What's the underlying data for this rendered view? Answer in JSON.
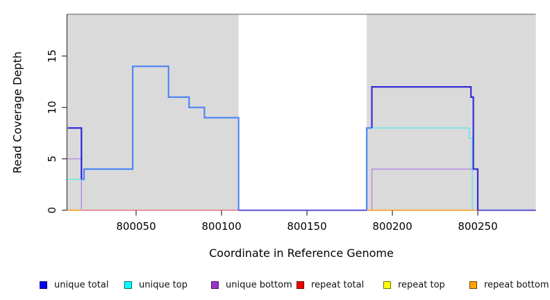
{
  "chart_data": {
    "type": "line",
    "step_style": "post",
    "title": "",
    "xlabel": "Coordinate in Reference Genome",
    "ylabel": "Read Coverage Depth",
    "xlim": [
      800010,
      800284
    ],
    "ylim": [
      0,
      19
    ],
    "x_ticks": [
      800050,
      800100,
      800150,
      800200,
      800250
    ],
    "y_ticks": [
      0,
      5,
      10,
      15
    ],
    "grid": false,
    "legend_position": "bottom",
    "shade_color": "#dadada",
    "shaded_regions": [
      {
        "x0": 800010,
        "x1": 800110
      },
      {
        "x0": 800185,
        "x1": 800284
      }
    ],
    "series": [
      {
        "name": "unique total",
        "color": "#0000ee",
        "points": [
          [
            800010,
            8
          ],
          [
            800018,
            3
          ],
          [
            800019,
            4
          ],
          [
            800048,
            14
          ],
          [
            800069,
            11
          ],
          [
            800081,
            10
          ],
          [
            800090,
            9
          ],
          [
            800110,
            0
          ],
          [
            800185,
            8
          ],
          [
            800188,
            12
          ],
          [
            800246,
            11
          ],
          [
            800247,
            4
          ],
          [
            800250,
            0
          ],
          [
            800284,
            0
          ]
        ]
      },
      {
        "name": "unique top",
        "color": "#00ffff",
        "points": [
          [
            800010,
            3
          ],
          [
            800018,
            0
          ],
          [
            800188,
            8
          ],
          [
            800245,
            7
          ],
          [
            800247,
            0
          ],
          [
            800284,
            0
          ]
        ]
      },
      {
        "name": "unique bottom",
        "color": "#9932cc",
        "points": [
          [
            800010,
            5
          ],
          [
            800018,
            0
          ],
          [
            800188,
            4
          ],
          [
            800250,
            0
          ],
          [
            800284,
            0
          ]
        ]
      },
      {
        "name": "repeat total",
        "color": "#ee0000",
        "points": [
          [
            800010,
            0
          ],
          [
            800284,
            0
          ]
        ]
      },
      {
        "name": "repeat top",
        "color": "#ffff00",
        "points": [
          [
            800010,
            0
          ],
          [
            800284,
            0
          ]
        ]
      },
      {
        "name": "repeat bottom",
        "color": "#ffa500",
        "points": [
          [
            800010,
            0
          ],
          [
            800284,
            0
          ]
        ]
      }
    ],
    "render_segments": [
      {
        "name": "repeat-total-baseline",
        "color": "#e0687e",
        "width": 1.4,
        "points": [
          [
            800010,
            0
          ],
          [
            800284,
            0
          ]
        ]
      },
      {
        "name": "unique-top-left",
        "color": "#55e8f2",
        "width": 1.4,
        "points": [
          [
            800010,
            3
          ],
          [
            800018,
            3
          ],
          [
            800018,
            0
          ]
        ]
      },
      {
        "name": "unique-bottom-left",
        "color": "#b78ae6",
        "width": 1.4,
        "points": [
          [
            800010,
            5
          ],
          [
            800018,
            5
          ],
          [
            800018,
            0
          ]
        ]
      },
      {
        "name": "repeat-bottom-left",
        "color": "#ff9e1b",
        "width": 1.6,
        "points": [
          [
            800010,
            0
          ],
          [
            800018,
            0
          ]
        ]
      },
      {
        "name": "unique-bottom-right",
        "color": "#b78ae6",
        "width": 1.4,
        "points": [
          [
            800188,
            0
          ],
          [
            800188,
            4
          ],
          [
            800250,
            4
          ],
          [
            800250,
            0
          ]
        ]
      },
      {
        "name": "repeat-bottom-right",
        "color": "#ff9e1b",
        "width": 1.6,
        "points": [
          [
            800185,
            0
          ],
          [
            800250,
            0
          ]
        ]
      },
      {
        "name": "unique-top-right",
        "color": "#55e8f2",
        "width": 1.4,
        "points": [
          [
            800188,
            8
          ],
          [
            800245,
            8
          ],
          [
            800245,
            7
          ],
          [
            800246.8,
            7
          ],
          [
            800246.8,
            0
          ]
        ]
      },
      {
        "name": "unique-total-left-plateau",
        "color": "#2b22dc",
        "width": 2.2,
        "points": [
          [
            800010,
            8
          ],
          [
            800018,
            8
          ],
          [
            800018,
            3
          ]
        ]
      },
      {
        "name": "unique-total-steps",
        "color": "#4e86f5",
        "width": 2.2,
        "points": [
          [
            800018,
            3
          ],
          [
            800019.5,
            3
          ],
          [
            800019.5,
            4
          ],
          [
            800048,
            4
          ],
          [
            800048,
            14
          ],
          [
            800069,
            14
          ],
          [
            800069,
            11
          ],
          [
            800081,
            11
          ],
          [
            800081,
            10
          ],
          [
            800090,
            10
          ],
          [
            800090,
            9
          ],
          [
            800110,
            9
          ],
          [
            800110,
            0
          ]
        ]
      },
      {
        "name": "total-zero-mid",
        "color": "#5b50dc",
        "width": 2.0,
        "points": [
          [
            800110,
            0
          ],
          [
            800185,
            0
          ]
        ]
      },
      {
        "name": "unique-total-right-rise",
        "color": "#4e86f5",
        "width": 2.2,
        "points": [
          [
            800185,
            0
          ],
          [
            800185,
            8
          ],
          [
            800188,
            8
          ]
        ]
      },
      {
        "name": "unique-total-right-plateau",
        "color": "#352bd8",
        "width": 2.2,
        "points": [
          [
            800188,
            8
          ],
          [
            800188,
            12
          ],
          [
            800246,
            12
          ],
          [
            800246,
            11
          ],
          [
            800247.4,
            11
          ],
          [
            800247.4,
            4
          ],
          [
            800250,
            4
          ],
          [
            800250,
            0
          ]
        ]
      },
      {
        "name": "total-zero-right",
        "color": "#5b50dc",
        "width": 2.0,
        "points": [
          [
            800250,
            0
          ],
          [
            800284,
            0
          ]
        ]
      }
    ]
  },
  "legend": {
    "items": [
      {
        "label": "unique total",
        "fill": "#0000ee",
        "border": "#00006a"
      },
      {
        "label": "unique top",
        "fill": "#00ffff",
        "border": "#006a6a"
      },
      {
        "label": "unique bottom",
        "fill": "#9932cc",
        "border": "#4b1966"
      },
      {
        "label": "repeat total",
        "fill": "#ee0000",
        "border": "#6a0000"
      },
      {
        "label": "repeat top",
        "fill": "#ffff00",
        "border": "#6a6a00"
      },
      {
        "label": "repeat bottom",
        "fill": "#ffa500",
        "border": "#6a4500"
      }
    ]
  }
}
